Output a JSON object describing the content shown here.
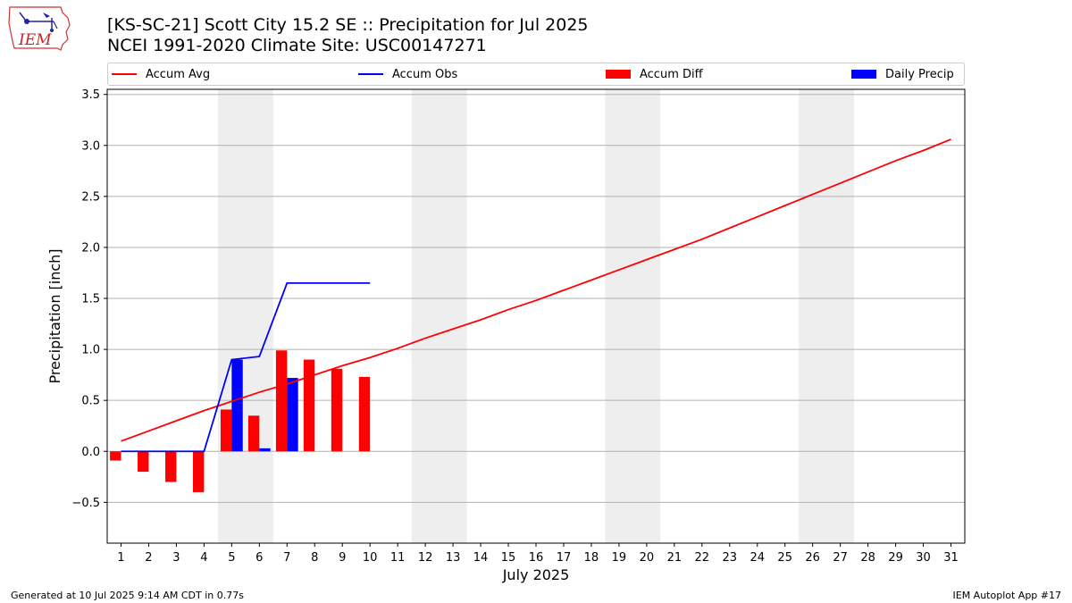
{
  "header": {
    "title_line1": "[KS-SC-21] Scott City 15.2 SE :: Precipitation for Jul 2025",
    "title_line2": "NCEI 1991-2020 Climate Site: USC00147271",
    "logo_text": "IEM"
  },
  "legend": {
    "items": [
      {
        "label": "Accum Avg",
        "kind": "line",
        "color": "#ff0000"
      },
      {
        "label": "Accum Obs",
        "kind": "line",
        "color": "#0000ff"
      },
      {
        "label": "Accum Diff",
        "kind": "bar",
        "color": "#ff0000"
      },
      {
        "label": "Daily Precip",
        "kind": "bar",
        "color": "#0000ff"
      }
    ]
  },
  "footer": {
    "left": "Generated at 10 Jul 2025 9:14 AM CDT in 0.77s",
    "right": "IEM Autoplot App #17"
  },
  "chart_data": {
    "type": "bar",
    "xlabel": "July 2025",
    "ylabel": "Precipitation [inch]",
    "xlim": [
      0.5,
      31.5
    ],
    "ylim": [
      -0.9,
      3.55
    ],
    "yticks": [
      -0.5,
      0.0,
      0.5,
      1.0,
      1.5,
      2.0,
      2.5,
      3.0,
      3.5
    ],
    "ytick_labels": [
      "−0.5",
      "0.0",
      "0.5",
      "1.0",
      "1.5",
      "2.0",
      "2.5",
      "3.0",
      "3.5"
    ],
    "x": [
      1,
      2,
      3,
      4,
      5,
      6,
      7,
      8,
      9,
      10,
      11,
      12,
      13,
      14,
      15,
      16,
      17,
      18,
      19,
      20,
      21,
      22,
      23,
      24,
      25,
      26,
      27,
      28,
      29,
      30,
      31
    ],
    "xtick_labels": [
      "1",
      "2",
      "3",
      "4",
      "5",
      "6",
      "7",
      "8",
      "9",
      "10",
      "11",
      "12",
      "13",
      "14",
      "15",
      "16",
      "17",
      "18",
      "19",
      "20",
      "21",
      "22",
      "23",
      "24",
      "25",
      "26",
      "27",
      "28",
      "29",
      "30",
      "31"
    ],
    "grid": "horizontal",
    "legend_position": "top",
    "weekend_shading": [
      [
        4.5,
        6.5
      ],
      [
        11.5,
        13.5
      ],
      [
        18.5,
        20.5
      ],
      [
        25.5,
        27.5
      ]
    ],
    "series": [
      {
        "name": "Accum Avg",
        "kind": "line",
        "color": "#ff0000",
        "x": [
          1,
          2,
          3,
          4,
          5,
          6,
          7,
          8,
          9,
          10,
          11,
          12,
          13,
          14,
          15,
          16,
          17,
          18,
          19,
          20,
          21,
          22,
          23,
          24,
          25,
          26,
          27,
          28,
          29,
          30,
          31
        ],
        "values": [
          0.1,
          0.2,
          0.3,
          0.4,
          0.49,
          0.58,
          0.66,
          0.75,
          0.84,
          0.92,
          1.01,
          1.11,
          1.2,
          1.29,
          1.39,
          1.48,
          1.58,
          1.68,
          1.78,
          1.88,
          1.98,
          2.08,
          2.19,
          2.3,
          2.41,
          2.52,
          2.63,
          2.74,
          2.85,
          2.95,
          3.06
        ]
      },
      {
        "name": "Accum Obs",
        "kind": "line",
        "color": "#0000ff",
        "x": [
          1,
          2,
          3,
          4,
          5,
          6,
          7,
          8,
          9,
          10
        ],
        "values": [
          0.0,
          0.0,
          0.0,
          0.0,
          0.9,
          0.93,
          1.65,
          1.65,
          1.65,
          1.65
        ]
      },
      {
        "name": "Accum Diff",
        "kind": "bar",
        "color": "#ff0000",
        "x": [
          1,
          2,
          3,
          4,
          5,
          6,
          7,
          8,
          9,
          10
        ],
        "values": [
          -0.09,
          -0.2,
          -0.3,
          -0.4,
          0.41,
          0.35,
          0.99,
          0.9,
          0.81,
          0.73
        ]
      },
      {
        "name": "Daily Precip",
        "kind": "bar",
        "color": "#0000ff",
        "x": [
          1,
          2,
          3,
          4,
          5,
          6,
          7,
          8,
          9,
          10
        ],
        "values": [
          0.0,
          0.0,
          0.0,
          0.0,
          0.9,
          0.03,
          0.72,
          0.0,
          0.0,
          0.0
        ]
      }
    ]
  }
}
